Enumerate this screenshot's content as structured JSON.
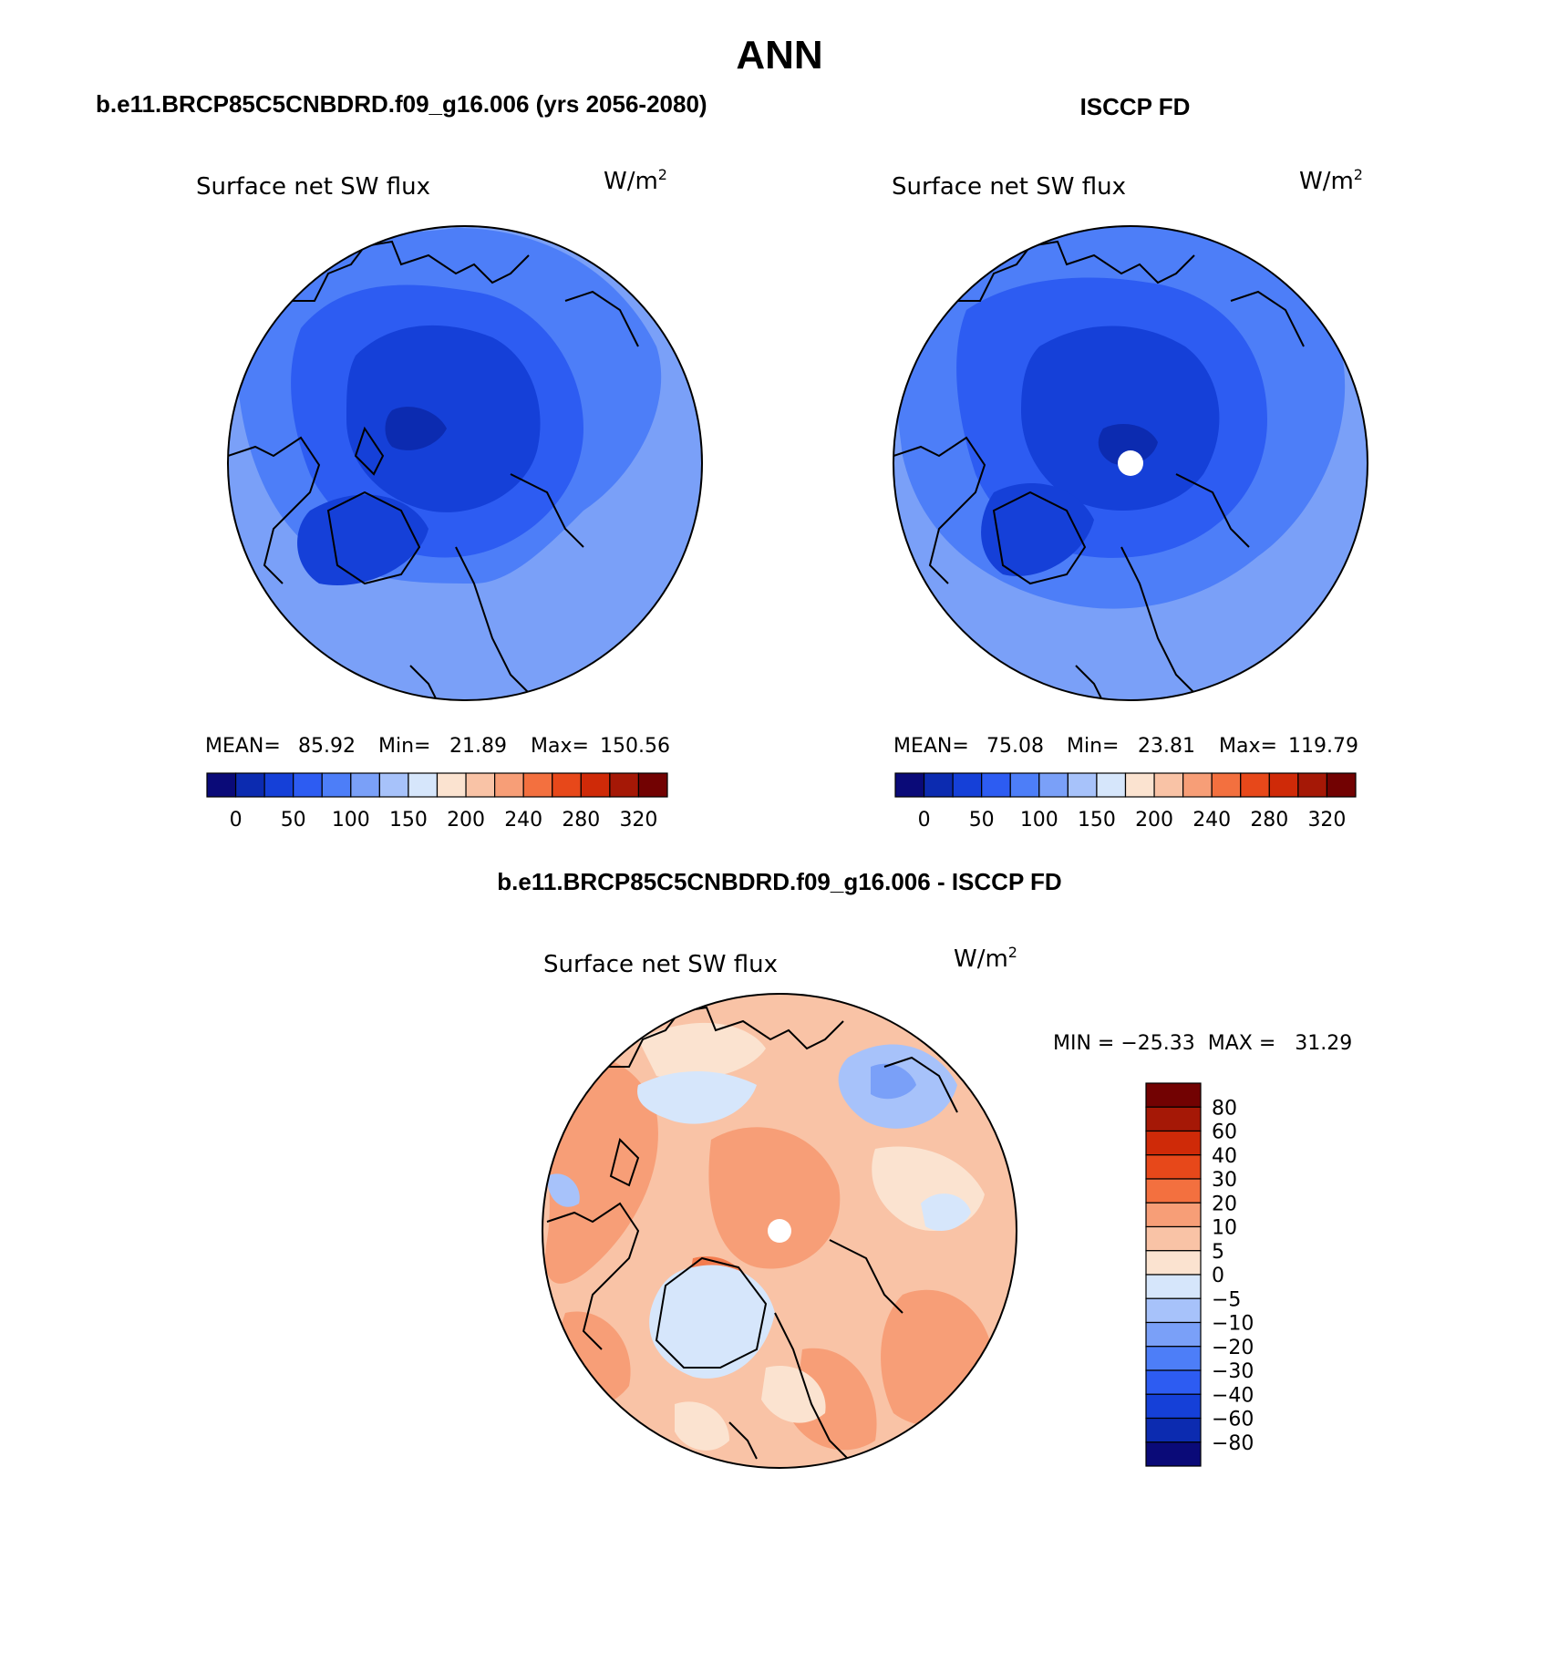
{
  "figure_title": "ANN",
  "panels": {
    "model": {
      "header": "b.e11.BRCP85C5CNBDRD.f09_g16.006 (yrs 2056-2080)",
      "variable": "Surface net SW flux",
      "units": "W/m",
      "units_sup": "2",
      "stats": {
        "mean_label": "MEAN=",
        "mean": "85.92",
        "min_label": "Min=",
        "min": "21.89",
        "max_label": "Max=",
        "max": "150.56"
      }
    },
    "obs": {
      "header": "ISCCP FD",
      "variable": "Surface net SW flux",
      "units": "W/m",
      "units_sup": "2",
      "stats": {
        "mean_label": "MEAN=",
        "mean": "75.08",
        "min_label": "Min=",
        "min": "23.81",
        "max_label": "Max=",
        "max": "119.79"
      }
    },
    "diff": {
      "header": "b.e11.BRCP85C5CNBDRD.f09_g16.006 - ISCCP FD",
      "variable": "Surface net SW flux",
      "units": "W/m",
      "units_sup": "2",
      "minmax": "MIN = −25.33  MAX =   31.29"
    }
  },
  "colorbars": {
    "abs": {
      "colors": [
        "#0a0a78",
        "#0c2bb0",
        "#1540d8",
        "#2d5cf2",
        "#4d7ef8",
        "#7aa0f8",
        "#a7c2fa",
        "#d6e6fb",
        "#fbe3d0",
        "#f9c3a6",
        "#f79e77",
        "#f3703f",
        "#e7481a",
        "#cf2a08",
        "#a51806",
        "#720202"
      ],
      "tick_labels": [
        "0",
        "50",
        "100",
        "150",
        "200",
        "240",
        "280",
        "320"
      ]
    },
    "diff": {
      "colors": [
        "#0a0a78",
        "#0c2bb0",
        "#1540d8",
        "#2d5cf2",
        "#4d7ef8",
        "#7aa0f8",
        "#a7c2fa",
        "#d6e6fb",
        "#fbe3d0",
        "#f9c3a6",
        "#f79e77",
        "#f3703f",
        "#e7481a",
        "#cf2a08",
        "#a51806",
        "#720202"
      ],
      "tick_labels": [
        "80",
        "60",
        "40",
        "30",
        "20",
        "10",
        "5",
        "0",
        "−5",
        "−10",
        "−20",
        "−30",
        "−40",
        "−60",
        "−80"
      ]
    }
  },
  "chart_data": {
    "type": "heatmap",
    "projection": "north-polar-stereographic",
    "maps": [
      {
        "name": "model",
        "mean": 85.92,
        "min": 21.89,
        "max": 150.56,
        "units": "W/m2",
        "levels": [
          0,
          25,
          50,
          75,
          100,
          125,
          150,
          175,
          200,
          220,
          240,
          260,
          280,
          300,
          320
        ]
      },
      {
        "name": "obs",
        "mean": 75.08,
        "min": 23.81,
        "max": 119.79,
        "units": "W/m2",
        "levels": [
          0,
          25,
          50,
          75,
          100,
          125,
          150,
          175,
          200,
          220,
          240,
          260,
          280,
          300,
          320
        ]
      },
      {
        "name": "diff",
        "min": -25.33,
        "max": 31.29,
        "units": "W/m2",
        "levels": [
          -80,
          -60,
          -40,
          -30,
          -20,
          -10,
          -5,
          0,
          5,
          10,
          20,
          30,
          40,
          60,
          80
        ]
      }
    ]
  }
}
